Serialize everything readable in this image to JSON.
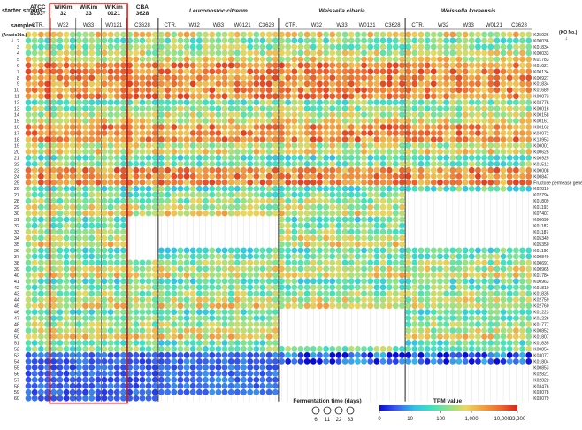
{
  "chart_data": {
    "type": "heatmap",
    "row_header_label": "starter strains",
    "samples_label": "samples",
    "row_index_label": "(Arabic No.)",
    "ko_label": "(KO No.)",
    "down_arrow": "↓",
    "top_groups": [
      {
        "name": "ATCC 8293ᵀ",
        "lines": [
          "ATCC",
          "8293ᵀ"
        ],
        "italic": false
      },
      {
        "name": "WiKim 32",
        "lines": [
          "WiKim",
          "32"
        ],
        "italic": false
      },
      {
        "name": "WiKim 33",
        "lines": [
          "WiKim",
          "33"
        ],
        "italic": false
      },
      {
        "name": "WiKim 0121",
        "lines": [
          "WiKim",
          "0121"
        ],
        "italic": false
      },
      {
        "name": "CBA 3628",
        "lines": [
          "CBA",
          "3628"
        ],
        "italic": false
      },
      {
        "name": "Leuconostoc citreum",
        "lines": [
          "Leuconostoc citreum"
        ],
        "italic": true
      },
      {
        "name": "Weissella cibaria",
        "lines": [
          "Weissella cibaria"
        ],
        "italic": true
      },
      {
        "name": "Weissella koreensis",
        "lines": [
          "Weissella koreensis"
        ],
        "italic": true
      }
    ],
    "sample_groups": [
      {
        "block": 0,
        "labels": [
          "CTR.",
          "W32",
          "W33",
          "W0121",
          "C3628"
        ]
      },
      {
        "block": 1,
        "labels": [
          "CTR.",
          "W32",
          "W33",
          "W0121",
          "C3628"
        ]
      },
      {
        "block": 2,
        "labels": [
          "CTR.",
          "W32",
          "W33",
          "W0121",
          "C3628"
        ]
      },
      {
        "block": 3,
        "labels": [
          "CTR.",
          "W32",
          "W33",
          "W0121",
          "C3628"
        ]
      }
    ],
    "highlight_box": "WiKim 32, WiKim 33, WiKim 0121 (rows 1–60)",
    "rows": [
      "1",
      "2",
      "3",
      "4",
      "5",
      "6",
      "7",
      "8",
      "9",
      "10",
      "11",
      "12",
      "13",
      "14",
      "15",
      "16",
      "17",
      "18",
      "19",
      "20",
      "21",
      "22",
      "23",
      "24",
      "25",
      "26",
      "27",
      "28",
      "29",
      "30",
      "31",
      "32",
      "33",
      "34",
      "35",
      "36",
      "37",
      "38",
      "39",
      "40",
      "41",
      "42",
      "43",
      "44",
      "45",
      "46",
      "47",
      "48",
      "49",
      "50",
      "51",
      "52",
      "53",
      "54",
      "55",
      "56",
      "57",
      "58",
      "59",
      "60"
    ],
    "ko_numbers": [
      "K25026",
      "K00036",
      "K01834",
      "K00033",
      "K01783",
      "K01621",
      "K00134",
      "K00927",
      "K01834",
      "K01689",
      "K00873",
      "K03776",
      "K00016",
      "K00158",
      "K00161",
      "K00162",
      "K04072",
      "K13953",
      "K00001",
      "K00625",
      "K00925",
      "K01512",
      "K00008",
      "K00847",
      "Fructose permease gene",
      "K02810",
      "K02794",
      "K01809",
      "K01193",
      "K07407",
      "K00690",
      "K01182",
      "K01187",
      "K05349",
      "K05350",
      "K01190",
      "K00849",
      "K00691",
      "K00965",
      "K01784",
      "K00963",
      "K01810",
      "K01835",
      "K02759",
      "K02760",
      "K01223",
      "K01226",
      "K01777",
      "K00852",
      "K01807",
      "K01835",
      "K00854",
      "K03077",
      "K01804",
      "K00853",
      "K02821",
      "K02822",
      "K03476",
      "K03078",
      "K03079"
    ],
    "fermentation_time_label": "Fermentation time (days)",
    "fermentation_days": [
      "6",
      "11",
      "22",
      "33"
    ],
    "tpm_label": "TPM value",
    "tpm_ticks": [
      "0",
      "10",
      "100",
      "1,000",
      "10,000",
      "33,300"
    ],
    "colorscale": [
      "#0b0bd9",
      "#3a5ff0",
      "#34bfe6",
      "#41e0bf",
      "#8ee28a",
      "#e8d860",
      "#f2a040",
      "#ee6a2e",
      "#d9241c"
    ],
    "value_scale": "log10 TPM, 0–4.5",
    "colors": {
      "highlight": "#e01010",
      "separator": "#222222",
      "empty": "#ffffff"
    }
  }
}
